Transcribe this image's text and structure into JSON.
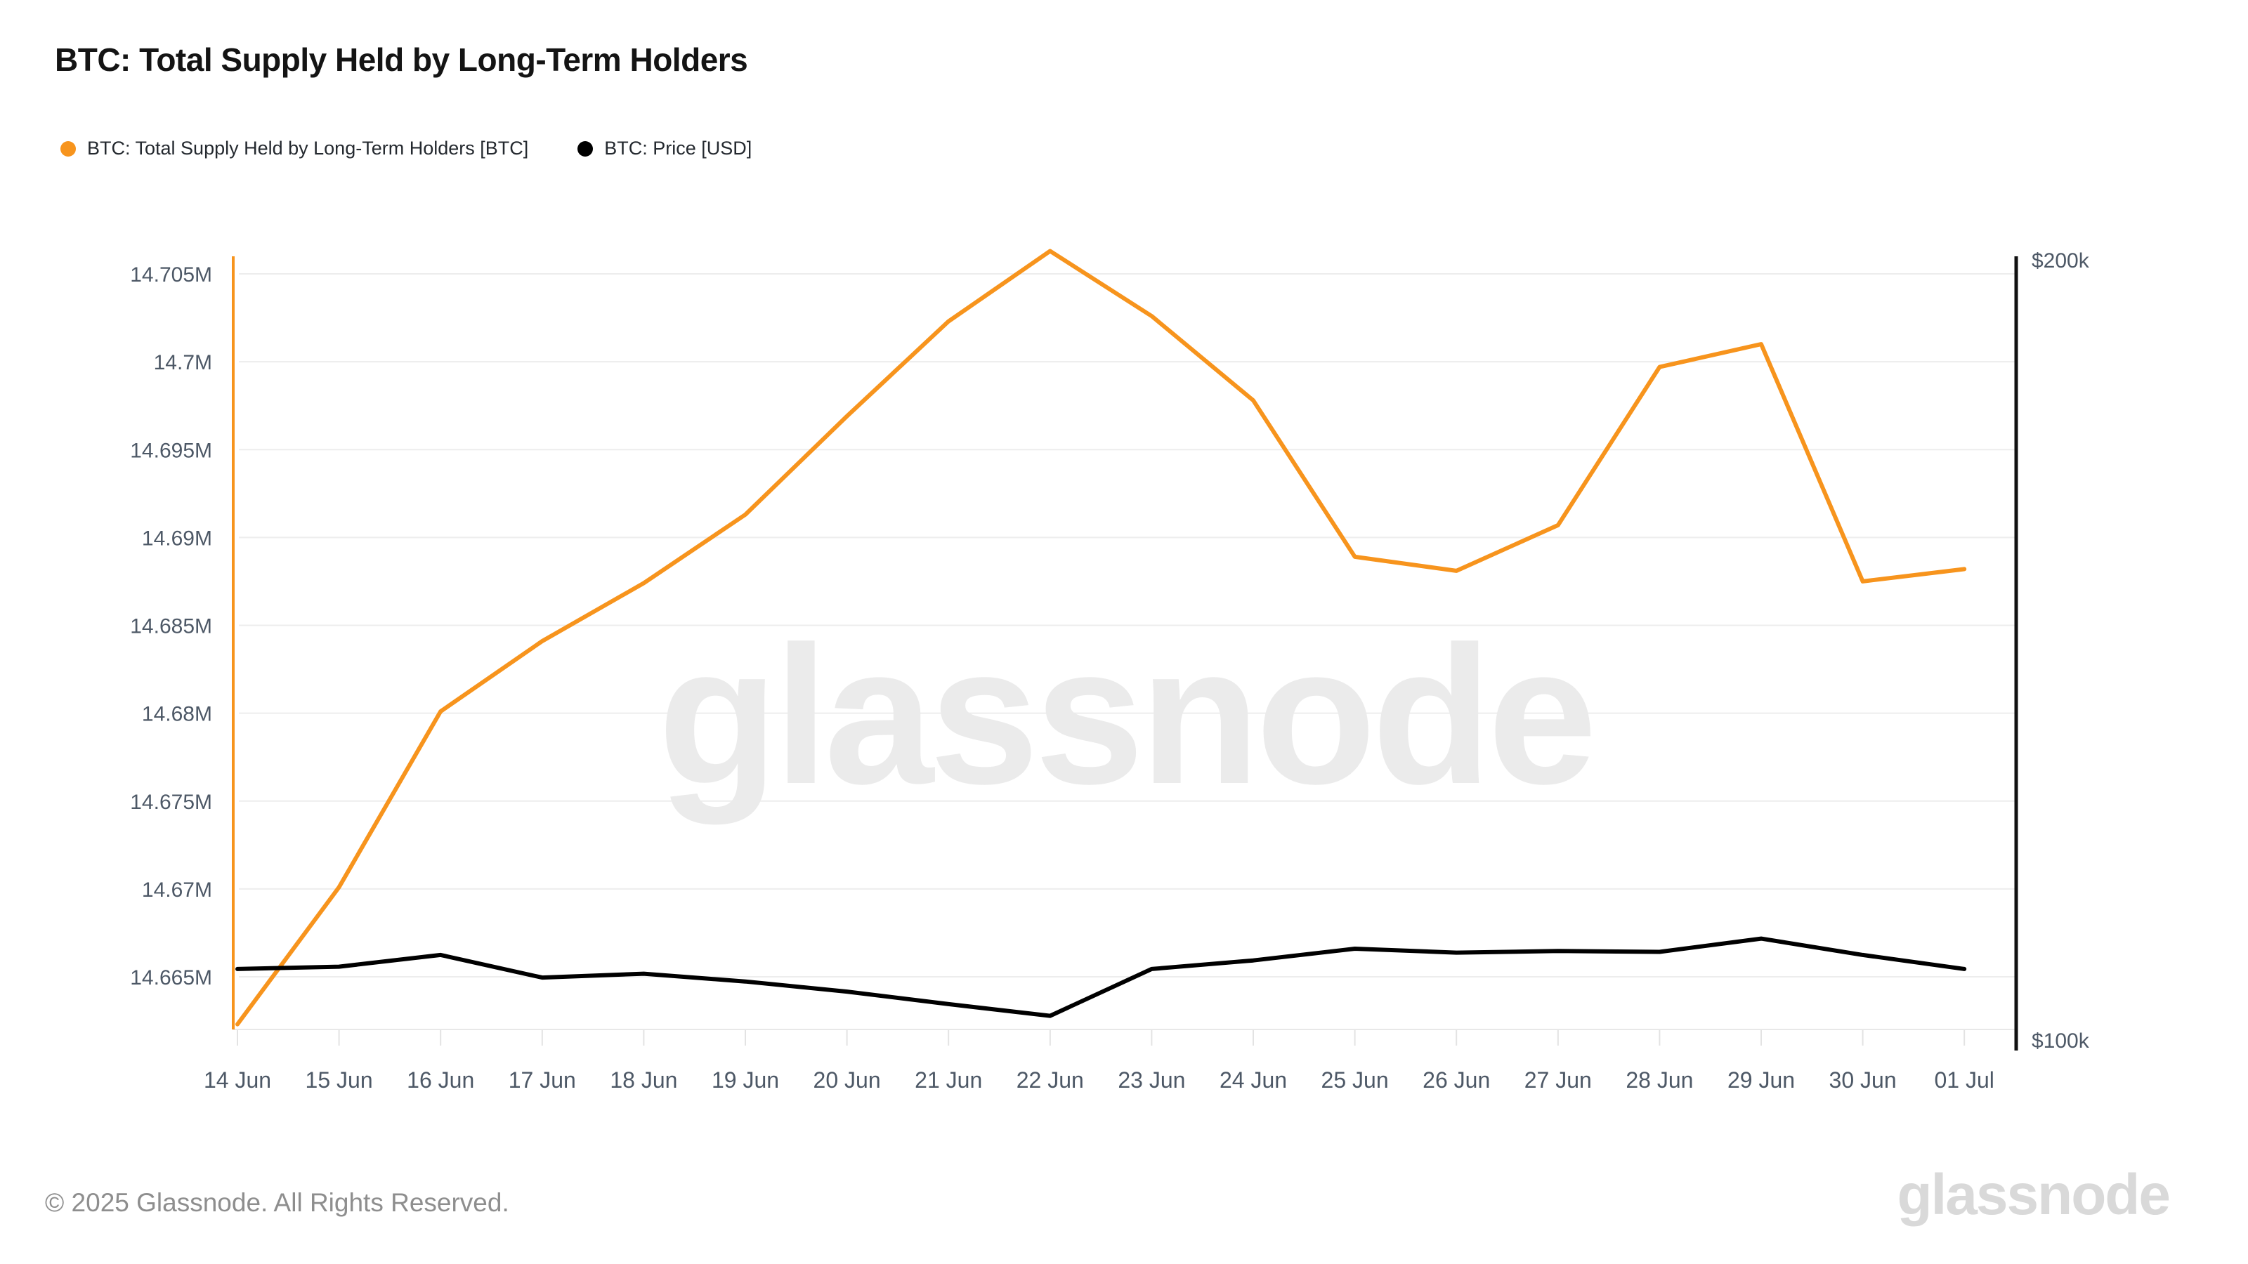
{
  "header": {
    "title": "BTC: Total Supply Held by Long-Term Holders"
  },
  "legend": {
    "items": [
      {
        "label": "BTC: Total Supply Held by Long-Term Holders [BTC]",
        "color": "#f7941d"
      },
      {
        "label": "BTC: Price [USD]",
        "color": "#000000"
      }
    ]
  },
  "watermark": {
    "text": "glassnode"
  },
  "footer": {
    "copyright": "© 2025 Glassnode. All Rights Reserved.",
    "logo": "glassnode"
  },
  "chart_data": {
    "type": "line",
    "title": "BTC: Total Supply Held by Long-Term Holders",
    "categories": [
      "14 Jun",
      "15 Jun",
      "16 Jun",
      "17 Jun",
      "18 Jun",
      "19 Jun",
      "20 Jun",
      "21 Jun",
      "22 Jun",
      "23 Jun",
      "24 Jun",
      "25 Jun",
      "26 Jun",
      "27 Jun",
      "28 Jun",
      "29 Jun",
      "30 Jun",
      "01 Jul"
    ],
    "series": [
      {
        "name": "BTC: Total Supply Held by Long-Term Holders [BTC]",
        "color": "#f7941d",
        "axis": "left",
        "unit": "M BTC",
        "values": [
          14.6623,
          14.6701,
          14.6801,
          14.6841,
          14.6874,
          14.6913,
          14.6969,
          14.7023,
          14.7063,
          14.7026,
          14.6978,
          14.6889,
          14.6881,
          14.6907,
          14.6997,
          14.701,
          14.6875,
          14.6882
        ]
      },
      {
        "name": "BTC: Price [USD]",
        "color": "#000000",
        "axis": "right",
        "unit": "USD (thousands)",
        "values": [
          109.1,
          109.4,
          110.9,
          108.0,
          108.5,
          107.5,
          106.2,
          104.6,
          103.1,
          109.1,
          110.2,
          111.7,
          111.2,
          111.4,
          111.3,
          113.0,
          110.9,
          109.1
        ]
      }
    ],
    "left_axis": {
      "unit": "M BTC",
      "range": [
        14.662,
        14.7065
      ],
      "ticks": [
        {
          "label": "14.705M",
          "value": 14.705
        },
        {
          "label": "14.7M",
          "value": 14.7
        },
        {
          "label": "14.695M",
          "value": 14.695
        },
        {
          "label": "14.69M",
          "value": 14.69
        },
        {
          "label": "14.685M",
          "value": 14.685
        },
        {
          "label": "14.68M",
          "value": 14.68
        },
        {
          "label": "14.675M",
          "value": 14.675
        },
        {
          "label": "14.67M",
          "value": 14.67
        },
        {
          "label": "14.665M",
          "value": 14.665
        }
      ]
    },
    "right_axis": {
      "unit": "USD (thousands)",
      "range": [
        100,
        200
      ],
      "ticks": [
        {
          "label": "$200k",
          "value": 200
        },
        {
          "label": "$100k",
          "value": 100
        }
      ]
    },
    "grid": "horizontal",
    "legend_position": "top-left"
  }
}
